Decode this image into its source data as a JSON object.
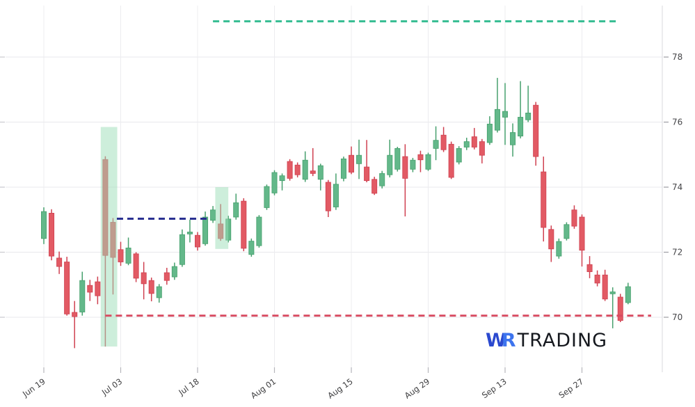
{
  "logo": {
    "w": "W",
    "r": "R",
    "trading": "TRADING"
  },
  "chart_data": {
    "type": "candlestick",
    "title": "",
    "grid": true,
    "y_axis_side": "right",
    "ylim": [
      68.5,
      79.6
    ],
    "y_ticks": [
      70,
      72,
      74,
      76,
      78
    ],
    "x_ticks": [
      "Jun 19",
      "Jul 03",
      "Jul 18",
      "Aug 01",
      "Aug 15",
      "Aug 29",
      "Sep 13",
      "Sep 27"
    ],
    "x_tick_indices": [
      0,
      10,
      20,
      30,
      40,
      50,
      60,
      70
    ],
    "colors": {
      "up_fill": "#63b88a",
      "up_stroke": "#46a06d",
      "down_fill": "#e25a64",
      "down_stroke": "#cf4050",
      "zone_fill": "rgba(155,221,183,0.5)",
      "resistance_line": "#36bd92",
      "support_line": "#d84a60",
      "entry_line": "#262d8f",
      "grid_line": "#e8e8ec",
      "axis_line": "#d8d8dd",
      "tick_label": "#3c3c3e"
    },
    "annotations": {
      "resistance_line": {
        "value": 79.1,
        "from_index": 22.0,
        "to_index": 74.4,
        "style": "dashed"
      },
      "support_line": {
        "value": 70.05,
        "from_index": 8.0,
        "to_index": 79.0,
        "style": "dashed"
      },
      "entry_line": {
        "value": 73.03,
        "from_index": 9.5,
        "to_index": 21.7,
        "style": "dashed"
      },
      "highlight_zones": [
        {
          "from_index": 7.4,
          "to_index": 9.55,
          "top_value": 75.85,
          "bottom_value": 69.1
        },
        {
          "from_index": 22.3,
          "to_index": 24.0,
          "top_value": 74.0,
          "bottom_value": 72.1
        }
      ]
    },
    "candles": [
      {
        "d": "Jun 19",
        "o": 72.42,
        "h": 73.38,
        "l": 72.25,
        "c": 73.25
      },
      {
        "d": "Jun 20",
        "o": 73.2,
        "h": 73.32,
        "l": 71.75,
        "c": 71.88
      },
      {
        "d": "Jun 21",
        "o": 71.82,
        "h": 72.02,
        "l": 71.33,
        "c": 71.56
      },
      {
        "d": "Jun 22",
        "o": 71.7,
        "h": 71.86,
        "l": 70.05,
        "c": 70.1
      },
      {
        "d": "Jun 23",
        "o": 70.15,
        "h": 70.5,
        "l": 69.05,
        "c": 70.02
      },
      {
        "d": "Jun 26",
        "o": 70.16,
        "h": 71.4,
        "l": 70.05,
        "c": 71.13
      },
      {
        "d": "Jun 27",
        "o": 70.98,
        "h": 71.15,
        "l": 70.5,
        "c": 70.77
      },
      {
        "d": "Jun 28",
        "o": 71.09,
        "h": 71.25,
        "l": 70.4,
        "c": 70.66
      },
      {
        "d": "Jun 29",
        "o": 74.85,
        "h": 74.95,
        "l": 69.1,
        "c": 71.9
      },
      {
        "d": "Jun 30",
        "o": 72.92,
        "h": 73.05,
        "l": 70.7,
        "c": 71.84
      },
      {
        "d": "Jul 03",
        "o": 72.08,
        "h": 72.32,
        "l": 71.58,
        "c": 71.7
      },
      {
        "d": "Jul 05",
        "o": 71.66,
        "h": 72.45,
        "l": 71.6,
        "c": 72.13
      },
      {
        "d": "Jul 06",
        "o": 71.95,
        "h": 72.0,
        "l": 71.08,
        "c": 71.2
      },
      {
        "d": "Jul 07",
        "o": 71.37,
        "h": 71.7,
        "l": 70.55,
        "c": 71.03
      },
      {
        "d": "Jul 10",
        "o": 71.13,
        "h": 71.22,
        "l": 70.49,
        "c": 70.73
      },
      {
        "d": "Jul 11",
        "o": 70.6,
        "h": 71.02,
        "l": 70.45,
        "c": 70.94
      },
      {
        "d": "Jul 12",
        "o": 71.37,
        "h": 71.52,
        "l": 71.0,
        "c": 71.13
      },
      {
        "d": "Jul 13",
        "o": 71.24,
        "h": 71.68,
        "l": 71.15,
        "c": 71.56
      },
      {
        "d": "Jul 14",
        "o": 71.62,
        "h": 72.7,
        "l": 71.55,
        "c": 72.54
      },
      {
        "d": "Jul 17",
        "o": 72.56,
        "h": 73.0,
        "l": 72.3,
        "c": 72.62
      },
      {
        "d": "Jul 18",
        "o": 72.52,
        "h": 72.62,
        "l": 72.05,
        "c": 72.16
      },
      {
        "d": "Jul 19",
        "o": 72.26,
        "h": 73.25,
        "l": 72.2,
        "c": 73.08
      },
      {
        "d": "Jul 20",
        "o": 72.98,
        "h": 73.42,
        "l": 72.9,
        "c": 73.3
      },
      {
        "d": "Jul 21",
        "o": 72.87,
        "h": 73.48,
        "l": 72.35,
        "c": 72.42
      },
      {
        "d": "Jul 24",
        "o": 72.37,
        "h": 73.12,
        "l": 72.3,
        "c": 73.02
      },
      {
        "d": "Jul 25",
        "o": 73.08,
        "h": 73.8,
        "l": 73.0,
        "c": 73.52
      },
      {
        "d": "Jul 26",
        "o": 73.57,
        "h": 73.66,
        "l": 72.03,
        "c": 72.12
      },
      {
        "d": "Jul 27",
        "o": 71.93,
        "h": 72.42,
        "l": 71.86,
        "c": 72.34
      },
      {
        "d": "Jul 28",
        "o": 72.2,
        "h": 73.14,
        "l": 72.14,
        "c": 73.08
      },
      {
        "d": "Jul 31",
        "o": 73.37,
        "h": 74.08,
        "l": 73.3,
        "c": 74.02
      },
      {
        "d": "Aug 01",
        "o": 73.82,
        "h": 74.52,
        "l": 73.75,
        "c": 74.45
      },
      {
        "d": "Aug 02",
        "o": 74.2,
        "h": 74.42,
        "l": 73.9,
        "c": 74.35
      },
      {
        "d": "Aug 03",
        "o": 74.79,
        "h": 74.86,
        "l": 74.2,
        "c": 74.27
      },
      {
        "d": "Aug 04",
        "o": 74.68,
        "h": 74.76,
        "l": 74.3,
        "c": 74.38
      },
      {
        "d": "Aug 07",
        "o": 74.24,
        "h": 75.1,
        "l": 74.16,
        "c": 74.83
      },
      {
        "d": "Aug 08",
        "o": 74.5,
        "h": 75.2,
        "l": 74.34,
        "c": 74.42
      },
      {
        "d": "Aug 09",
        "o": 74.24,
        "h": 74.72,
        "l": 73.9,
        "c": 74.66
      },
      {
        "d": "Aug 10",
        "o": 74.15,
        "h": 74.22,
        "l": 73.08,
        "c": 73.27
      },
      {
        "d": "Aug 11",
        "o": 73.39,
        "h": 74.42,
        "l": 73.3,
        "c": 74.09
      },
      {
        "d": "Aug 14",
        "o": 74.27,
        "h": 74.94,
        "l": 74.18,
        "c": 74.87
      },
      {
        "d": "Aug 15",
        "o": 74.98,
        "h": 75.25,
        "l": 74.4,
        "c": 74.46
      },
      {
        "d": "Aug 16",
        "o": 74.72,
        "h": 75.46,
        "l": 74.25,
        "c": 74.98
      },
      {
        "d": "Aug 17",
        "o": 74.62,
        "h": 75.45,
        "l": 74.15,
        "c": 74.2
      },
      {
        "d": "Aug 18",
        "o": 74.24,
        "h": 74.32,
        "l": 73.76,
        "c": 73.81
      },
      {
        "d": "Aug 21",
        "o": 74.04,
        "h": 74.5,
        "l": 73.96,
        "c": 74.42
      },
      {
        "d": "Aug 22",
        "o": 74.38,
        "h": 75.46,
        "l": 74.3,
        "c": 74.98
      },
      {
        "d": "Aug 23",
        "o": 74.55,
        "h": 75.24,
        "l": 74.48,
        "c": 75.19
      },
      {
        "d": "Aug 24",
        "o": 74.94,
        "h": 75.32,
        "l": 73.1,
        "c": 74.27
      },
      {
        "d": "Aug 25",
        "o": 74.55,
        "h": 74.9,
        "l": 74.46,
        "c": 74.83
      },
      {
        "d": "Aug 28",
        "o": 75.0,
        "h": 75.12,
        "l": 74.46,
        "c": 74.84
      },
      {
        "d": "Aug 29",
        "o": 74.55,
        "h": 75.06,
        "l": 74.5,
        "c": 75.0
      },
      {
        "d": "Aug 30",
        "o": 75.19,
        "h": 75.87,
        "l": 74.83,
        "c": 75.44
      },
      {
        "d": "Aug 31",
        "o": 75.6,
        "h": 75.85,
        "l": 75.08,
        "c": 75.15
      },
      {
        "d": "Sep 01",
        "o": 75.32,
        "h": 75.4,
        "l": 74.25,
        "c": 74.3
      },
      {
        "d": "Sep 05",
        "o": 74.77,
        "h": 75.26,
        "l": 74.7,
        "c": 75.19
      },
      {
        "d": "Sep 06",
        "o": 75.23,
        "h": 75.52,
        "l": 75.14,
        "c": 75.4
      },
      {
        "d": "Sep 07",
        "o": 75.55,
        "h": 75.82,
        "l": 75.16,
        "c": 75.23
      },
      {
        "d": "Sep 08",
        "o": 75.4,
        "h": 75.48,
        "l": 74.73,
        "c": 74.98
      },
      {
        "d": "Sep 11",
        "o": 75.37,
        "h": 76.18,
        "l": 75.3,
        "c": 75.94
      },
      {
        "d": "Sep 12",
        "o": 75.75,
        "h": 77.36,
        "l": 75.68,
        "c": 76.39
      },
      {
        "d": "Sep 13",
        "o": 76.15,
        "h": 77.2,
        "l": 75.3,
        "c": 76.33
      },
      {
        "d": "Sep 14",
        "o": 75.3,
        "h": 75.96,
        "l": 74.94,
        "c": 75.68
      },
      {
        "d": "Sep 15",
        "o": 75.57,
        "h": 77.26,
        "l": 75.5,
        "c": 76.15
      },
      {
        "d": "Sep 18",
        "o": 76.07,
        "h": 77.12,
        "l": 76.0,
        "c": 76.28
      },
      {
        "d": "Sep 19",
        "o": 76.52,
        "h": 76.62,
        "l": 74.66,
        "c": 74.94
      },
      {
        "d": "Sep 20",
        "o": 74.47,
        "h": 74.94,
        "l": 72.33,
        "c": 72.76
      },
      {
        "d": "Sep 21",
        "o": 72.7,
        "h": 72.82,
        "l": 71.7,
        "c": 72.1
      },
      {
        "d": "Sep 22",
        "o": 71.88,
        "h": 72.42,
        "l": 71.8,
        "c": 72.33
      },
      {
        "d": "Sep 25",
        "o": 72.42,
        "h": 72.92,
        "l": 72.36,
        "c": 72.85
      },
      {
        "d": "Sep 26",
        "o": 73.3,
        "h": 73.44,
        "l": 72.72,
        "c": 72.8
      },
      {
        "d": "Sep 27",
        "o": 73.08,
        "h": 73.16,
        "l": 71.56,
        "c": 72.06
      },
      {
        "d": "Sep 28",
        "o": 71.62,
        "h": 71.88,
        "l": 71.2,
        "c": 71.4
      },
      {
        "d": "Sep 29",
        "o": 71.3,
        "h": 71.44,
        "l": 70.95,
        "c": 71.05
      },
      {
        "d": "Oct 02",
        "o": 71.3,
        "h": 71.46,
        "l": 70.5,
        "c": 70.56
      },
      {
        "d": "Oct 03",
        "o": 70.72,
        "h": 70.92,
        "l": 69.66,
        "c": 70.78
      },
      {
        "d": "Oct 04",
        "o": 70.62,
        "h": 70.72,
        "l": 69.85,
        "c": 69.9
      },
      {
        "d": "Oct 05",
        "o": 70.45,
        "h": 71.06,
        "l": 70.4,
        "c": 70.94
      }
    ]
  }
}
